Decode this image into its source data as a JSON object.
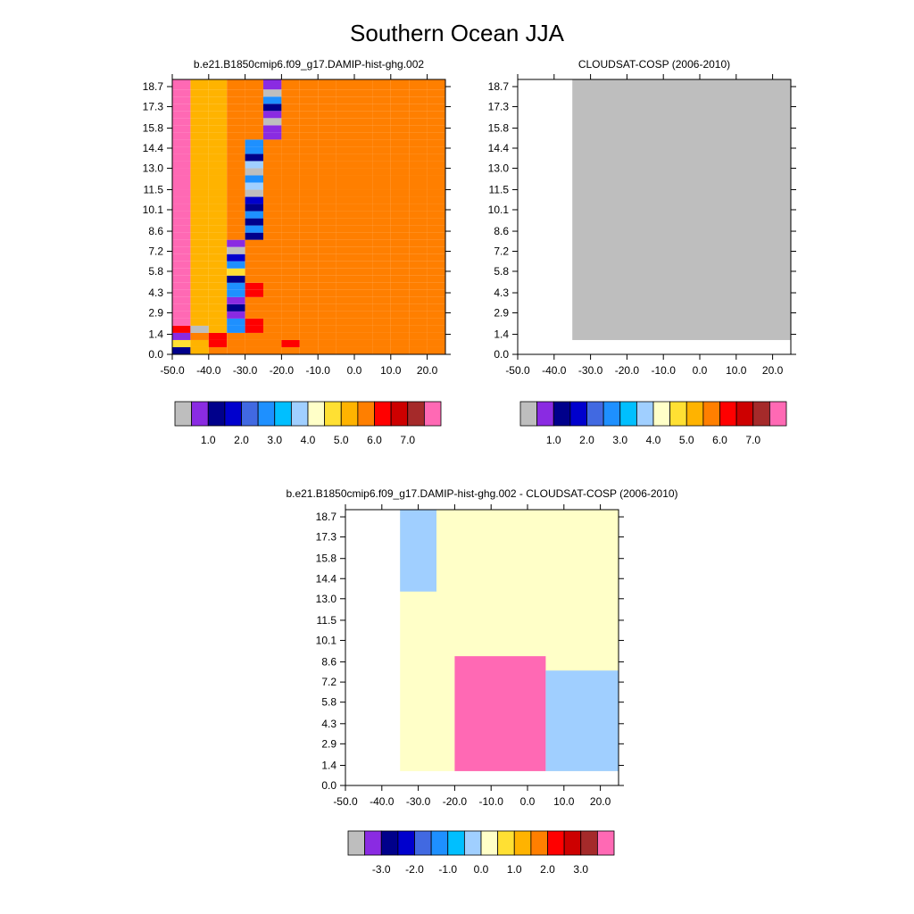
{
  "figure": {
    "title": "Southern Ocean JJA"
  },
  "chart_data": [
    {
      "type": "heatmap",
      "title": "b.e21.B1850cmip6.f09_g17.DAMIP-hist-ghg.002",
      "xlabel": "",
      "ylabel": "",
      "xlim": [
        -50,
        25
      ],
      "ylim": [
        0,
        19.2
      ],
      "x_ticks": [
        "-50.0",
        "-40.0",
        "-30.0",
        "-20.0",
        "-10.0",
        "0.0",
        "10.0",
        "20.0"
      ],
      "y_ticks": [
        "0.0",
        "1.4",
        "2.9",
        "4.3",
        "5.8",
        "7.2",
        "8.6",
        "10.1",
        "11.5",
        "13.0",
        "14.4",
        "15.8",
        "17.3",
        "18.7"
      ],
      "colorbar": {
        "colors": [
          "#BEBEBE",
          "#8A2BE2",
          "#00008B",
          "#0000CD",
          "#4169E1",
          "#1E90FF",
          "#00BFFF",
          "#A0CFFF",
          "#FFFFC8",
          "#FFE033",
          "#FFB300",
          "#FF7F00",
          "#FF0000",
          "#CD0000",
          "#A52A2A",
          "#FF69B4"
        ],
        "labels": [
          "1.0",
          "2.0",
          "3.0",
          "4.0",
          "5.0",
          "6.0",
          "7.0"
        ]
      },
      "x_edges": [
        -50,
        -45,
        -40,
        -35,
        -30,
        -25,
        -20,
        -15,
        -10,
        -5,
        0,
        5,
        10,
        15,
        20,
        25
      ],
      "y_edges": [
        0,
        0.5,
        1.0,
        1.5,
        2.0,
        2.5,
        3.0,
        3.5,
        4.0,
        4.5,
        5.0,
        5.5,
        6.0,
        6.5,
        7.0,
        7.5,
        8.0,
        8.5,
        9.0,
        9.5,
        10.0,
        10.5,
        11.0,
        11.5,
        12.0,
        12.5,
        13.0,
        13.5,
        14.0,
        14.5,
        15.0,
        15.5,
        16.0,
        16.5,
        17.0,
        17.5,
        18.0,
        18.5,
        19.2
      ],
      "value_edges": [
        0,
        0.5,
        1.0,
        1.5,
        2.0,
        2.5,
        3.0,
        3.5,
        4.0,
        4.5,
        5.0,
        5.5,
        6.0,
        6.5,
        7.0,
        7.5,
        8.0
      ],
      "cells": [
        "2ABBBBBBBBBBBBBB",
        "9ACBBBCBBBBBBBBB",
        "1BCBBBBBBBBBBBBB",
        "CIA5CBBBBBBBBBBB",
        "FAA5CBBBBBBBBBBB",
        "FAA1BBBBBBBBBBBB",
        "FAA2BBBBBBBBBBBB",
        "FAA1BBBBBBBBBBBB",
        "FAA5CBBBBBBBBBBB",
        "FAA5CBBBBBBBBBBB",
        "FAA2BBBBBBBBBBBB",
        "FAA9BBBBBBBBBBBB",
        "FAA5BBBBBBBBBBBB",
        "FAA3BBBBBBBBBBBB",
        "FAA0BBBBBBBBBBBB",
        "FAA1BBBBBBBBBBBB",
        "FAAB2BBBBBBBBBBB",
        "FAAB5BBBBBBBBBBB",
        "FAAB2BBBBBBBBBBB",
        "FAAB5BBBBBBBBBBB",
        "FAAB2BBBBBBBBBBB",
        "FAAB3BBBBBBBBBBB",
        "FAAB0BBBBBBBBBBB",
        "FAAB7BBBBBBBBBBB",
        "FAAB5BBBBBBBBBBB",
        "FAAB0BBBBBBBBBBB",
        "FAAB7BBBBBBBBBBB",
        "FAAB2BBBBBBBBBBB",
        "FAAB5BBBBBBBBBBB",
        "FAAB5BBBBBBBBBBB",
        "FAABB1BBBBBBBBBB",
        "FAABB1BBBBBBBBBB",
        "FAABB0BBBBBBBBBB",
        "FAABB1BBBBBBBBBB",
        "FAABB2BBBBBBBBBB",
        "FAABB5BBBBBBBBBB",
        "FAABB0BBBBBBBBBB",
        "FAABB1BBBBBBBBBB"
      ]
    },
    {
      "type": "heatmap",
      "title": "CLOUDSAT-COSP (2006-2010)",
      "xlabel": "",
      "ylabel": "",
      "xlim": [
        -50,
        25
      ],
      "ylim": [
        0,
        19.2
      ],
      "x_ticks": [
        "-50.0",
        "-40.0",
        "-30.0",
        "-20.0",
        "-10.0",
        "0.0",
        "10.0",
        "20.0"
      ],
      "y_ticks": [
        "0.0",
        "1.4",
        "2.9",
        "4.3",
        "5.8",
        "7.2",
        "8.6",
        "10.1",
        "11.5",
        "13.0",
        "14.4",
        "15.8",
        "17.3",
        "18.7"
      ],
      "colorbar": {
        "colors": [
          "#BEBEBE",
          "#8A2BE2",
          "#00008B",
          "#0000CD",
          "#4169E1",
          "#1E90FF",
          "#00BFFF",
          "#A0CFFF",
          "#FFFFC8",
          "#FFE033",
          "#FFB300",
          "#FF7F00",
          "#FF0000",
          "#CD0000",
          "#A52A2A",
          "#FF69B4"
        ],
        "labels": [
          "1.0",
          "2.0",
          "3.0",
          "4.0",
          "5.0",
          "6.0",
          "7.0"
        ]
      }
    },
    {
      "type": "heatmap",
      "title": "b.e21.B1850cmip6.f09_g17.DAMIP-hist-ghg.002 - CLOUDSAT-COSP (2006-2010)",
      "xlabel": "",
      "ylabel": "",
      "xlim": [
        -50,
        25
      ],
      "ylim": [
        0,
        19.2
      ],
      "x_ticks": [
        "-50.0",
        "-40.0",
        "-30.0",
        "-20.0",
        "-10.0",
        "0.0",
        "10.0",
        "20.0"
      ],
      "y_ticks": [
        "0.0",
        "1.4",
        "2.9",
        "4.3",
        "5.8",
        "7.2",
        "8.6",
        "10.1",
        "11.5",
        "13.0",
        "14.4",
        "15.8",
        "17.3",
        "18.7"
      ],
      "colorbar": {
        "colors": [
          "#BEBEBE",
          "#8A2BE2",
          "#00008B",
          "#0000CD",
          "#4169E1",
          "#1E90FF",
          "#00BFFF",
          "#A0CFFF",
          "#FFFFC8",
          "#FFE033",
          "#FFB300",
          "#FF7F00",
          "#FF0000",
          "#CD0000",
          "#A52A2A",
          "#FF69B4"
        ],
        "labels": [
          "-3.0",
          "-2.0",
          "-1.0",
          "0.0",
          "1.0",
          "2.0",
          "3.0"
        ]
      }
    }
  ]
}
